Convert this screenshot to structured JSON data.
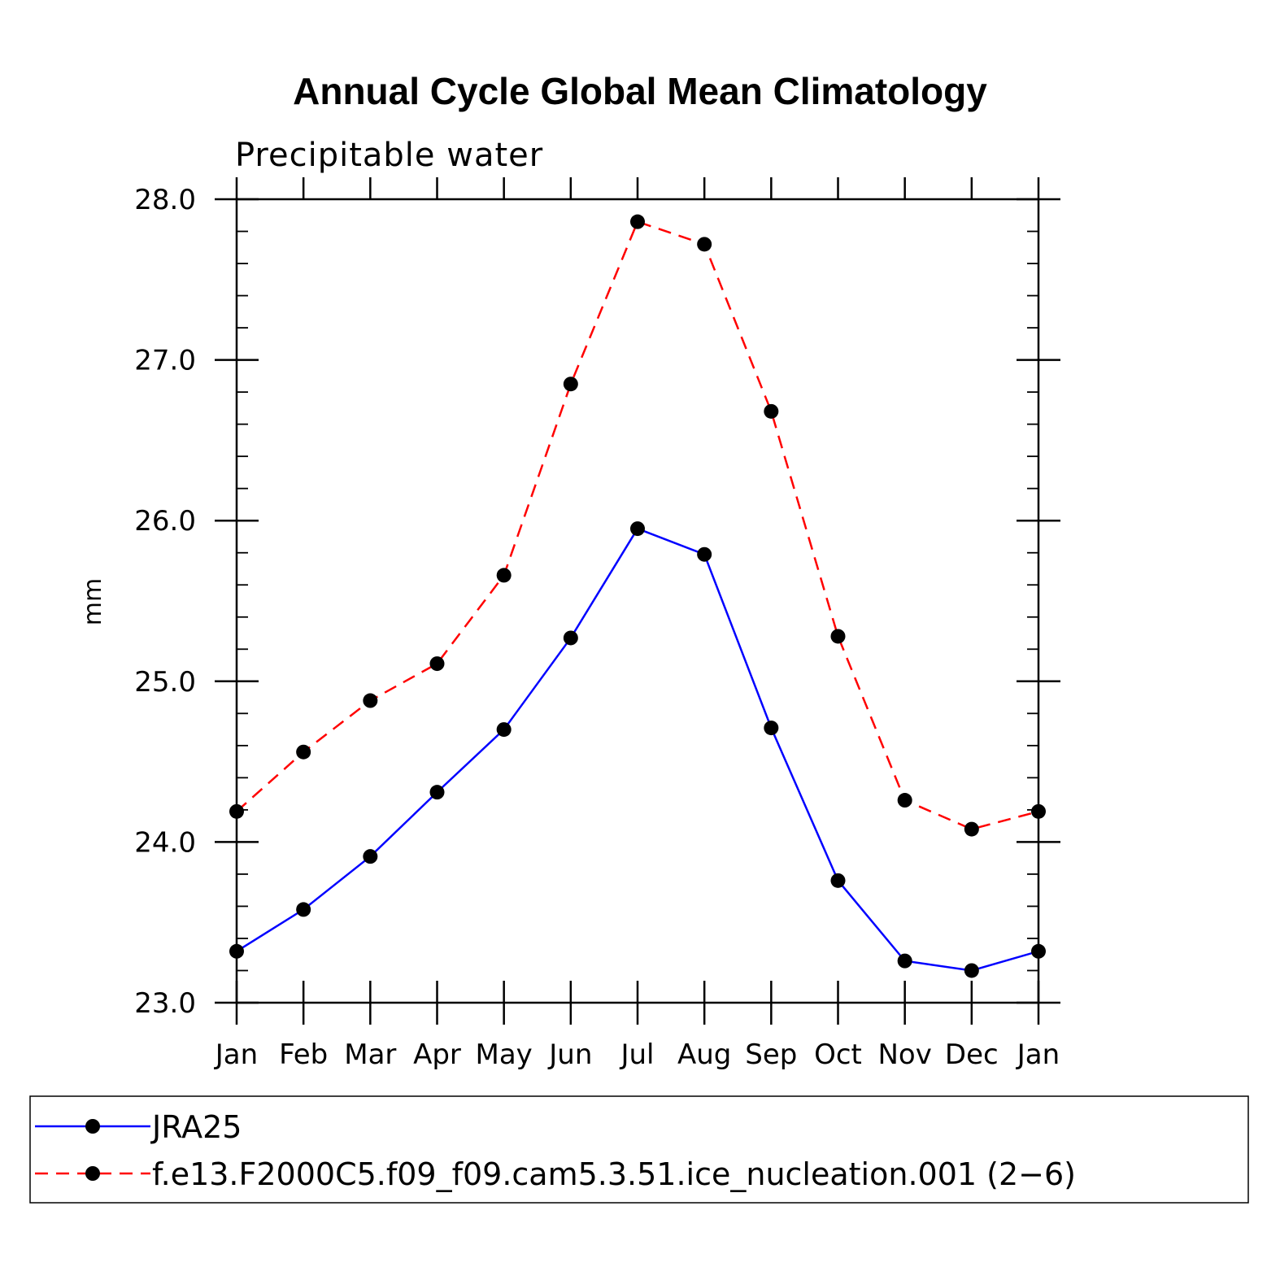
{
  "chart_data": {
    "type": "line",
    "title": "Annual Cycle Global Mean Climatology",
    "subtitle": "Precipitable water",
    "xlabel": "",
    "ylabel": "mm",
    "categories": [
      "Jan",
      "Feb",
      "Mar",
      "Apr",
      "May",
      "Jun",
      "Jul",
      "Aug",
      "Sep",
      "Oct",
      "Nov",
      "Dec",
      "Jan"
    ],
    "ylim": [
      23.0,
      28.0
    ],
    "yticks": [
      "23.0",
      "24.0",
      "25.0",
      "26.0",
      "27.0",
      "28.0"
    ],
    "ytick_values": [
      23.0,
      24.0,
      25.0,
      26.0,
      27.0,
      28.0
    ],
    "y_minor_step": 0.2,
    "grid": false,
    "legend_position": "bottom",
    "series": [
      {
        "name": "JRA25",
        "color": "#0000ff",
        "style": "solid",
        "marker": "circle",
        "values": [
          23.32,
          23.58,
          23.91,
          24.31,
          24.7,
          25.27,
          25.95,
          25.79,
          24.71,
          23.76,
          23.26,
          23.2,
          23.32
        ]
      },
      {
        "name": "f.e13.F2000C5.f09_f09.cam5.3.51.ice_nucleation.001 (2−6)",
        "color": "#ff0000",
        "style": "dashed",
        "marker": "circle",
        "values": [
          24.19,
          24.56,
          24.88,
          25.11,
          25.66,
          26.85,
          27.86,
          27.72,
          26.68,
          25.28,
          24.26,
          24.08,
          24.19
        ]
      }
    ]
  }
}
